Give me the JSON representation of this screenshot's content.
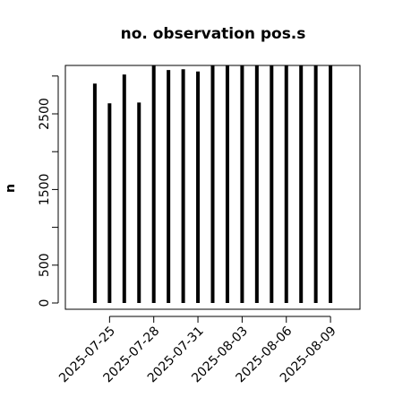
{
  "chart_data": {
    "type": "h",
    "title": "no. observation pos.s",
    "y_label": "n",
    "x": [
      "2025-07-24",
      "2025-07-25",
      "2025-07-26",
      "2025-07-27",
      "2025-07-28",
      "2025-07-29",
      "2025-07-30",
      "2025-07-31",
      "2025-08-01",
      "2025-08-02",
      "2025-08-03",
      "2025-08-04",
      "2025-08-05",
      "2025-08-06",
      "2025-08-07",
      "2025-08-08",
      "2025-08-09"
    ],
    "values": [
      2900,
      2640,
      3020,
      2650,
      3200,
      3080,
      3090,
      3060,
      3200,
      3200,
      3200,
      3200,
      3200,
      3200,
      3200,
      3200,
      3200
    ],
    "color": "#000000",
    "xlim": [
      "2025-07-22",
      "2025-08-11"
    ],
    "xticks": [
      "2025-07-25",
      "2025-07-28",
      "2025-07-31",
      "2025-08-03",
      "2025-08-06",
      "2025-08-09"
    ],
    "xtick_colors": [
      "#000000",
      "#000000",
      "#228b22",
      "#000000",
      "#000000",
      "#000000"
    ],
    "ylim": [
      -83,
      3140
    ],
    "yticks": [
      0,
      500,
      1500,
      2500
    ],
    "yminor_ticks": [
      1000,
      2000,
      3000
    ]
  }
}
